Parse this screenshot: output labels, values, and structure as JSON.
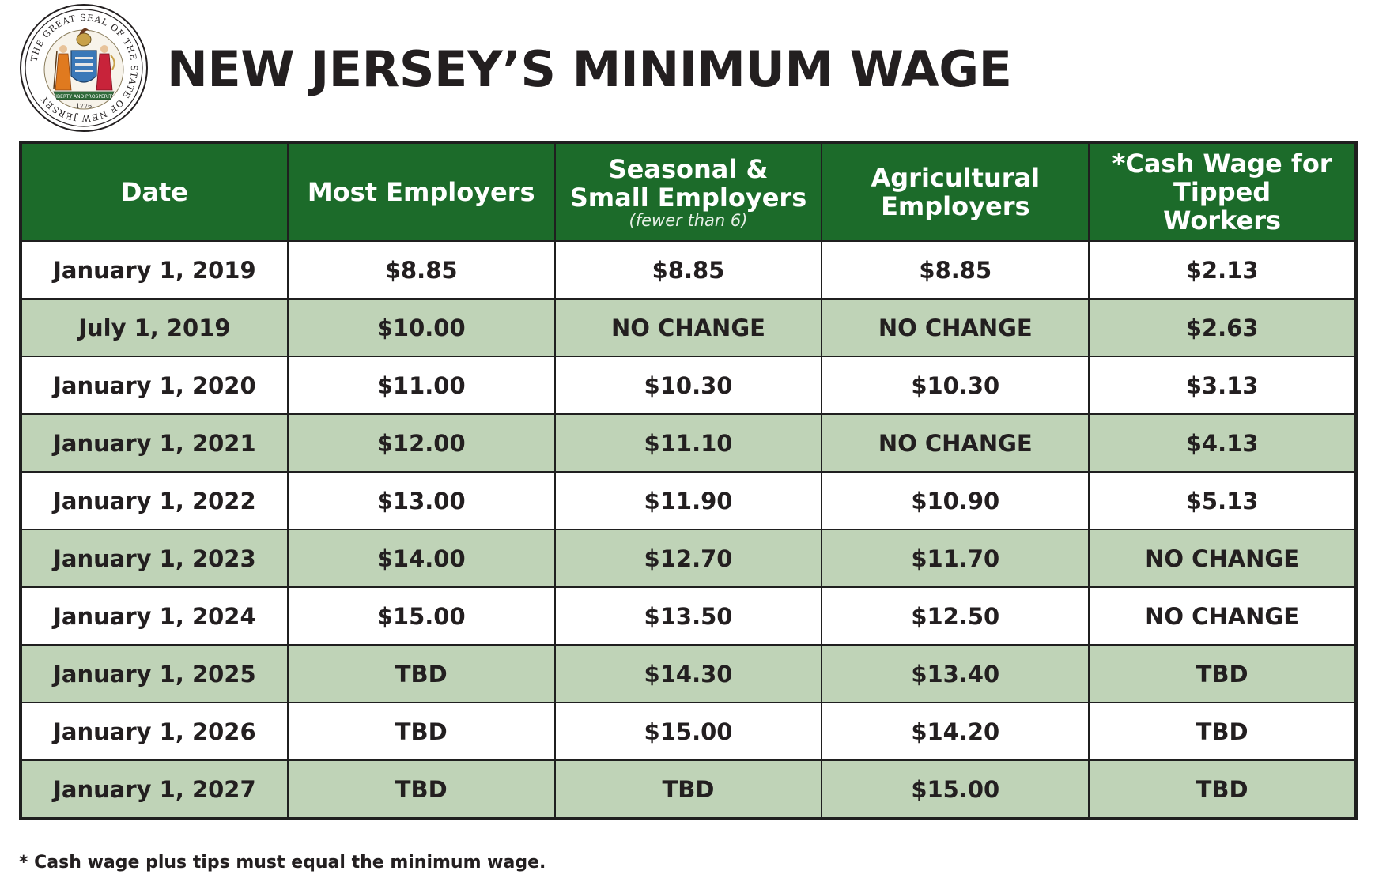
{
  "header": {
    "title": "NEW JERSEY’S MINIMUM WAGE",
    "seal": {
      "icon": "state-seal-icon",
      "text": "THE GREAT SEAL OF THE STATE OF NEW JERSEY",
      "banner": "LIBERTY AND PROSPERITY",
      "year": "1776"
    }
  },
  "table": {
    "columns": [
      {
        "label": "Date",
        "sublabel": ""
      },
      {
        "label": "Most Employers",
        "sublabel": ""
      },
      {
        "label": "Seasonal & Small Employers",
        "sublabel": "(fewer than 6)"
      },
      {
        "label": "Agricultural Employers",
        "sublabel": ""
      },
      {
        "label": "*Cash Wage for Tipped Workers",
        "sublabel": ""
      }
    ],
    "rows": [
      [
        "January 1, 2019",
        "$8.85",
        "$8.85",
        "$8.85",
        "$2.13"
      ],
      [
        "July 1, 2019",
        "$10.00",
        "NO CHANGE",
        "NO CHANGE",
        "$2.63"
      ],
      [
        "January 1, 2020",
        "$11.00",
        "$10.30",
        "$10.30",
        "$3.13"
      ],
      [
        "January 1, 2021",
        "$12.00",
        "$11.10",
        "NO CHANGE",
        "$4.13"
      ],
      [
        "January 1, 2022",
        "$13.00",
        "$11.90",
        "$10.90",
        "$5.13"
      ],
      [
        "January 1, 2023",
        "$14.00",
        "$12.70",
        "$11.70",
        "NO CHANGE"
      ],
      [
        "January 1, 2024",
        "$15.00",
        "$13.50",
        "$12.50",
        "NO CHANGE"
      ],
      [
        "January 1, 2025",
        "TBD",
        "$14.30",
        "$13.40",
        "TBD"
      ],
      [
        "January 1, 2026",
        "TBD",
        "$15.00",
        "$14.20",
        "TBD"
      ],
      [
        "January 1, 2027",
        "TBD",
        "TBD",
        "$15.00",
        "TBD"
      ]
    ]
  },
  "footnote": "* Cash wage plus tips must equal the minimum wage.",
  "colors": {
    "header_green": "#1c6b2a",
    "row_alt_green": "#bfd3b7",
    "text_dark": "#231f20"
  }
}
